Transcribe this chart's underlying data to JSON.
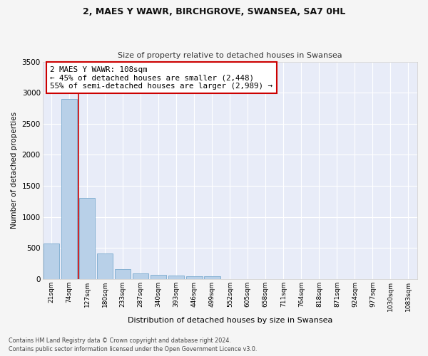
{
  "title": "2, MAES Y WAWR, BIRCHGROVE, SWANSEA, SA7 0HL",
  "subtitle": "Size of property relative to detached houses in Swansea",
  "xlabel": "Distribution of detached houses by size in Swansea",
  "ylabel": "Number of detached properties",
  "categories": [
    "21sqm",
    "74sqm",
    "127sqm",
    "180sqm",
    "233sqm",
    "287sqm",
    "340sqm",
    "393sqm",
    "446sqm",
    "499sqm",
    "552sqm",
    "605sqm",
    "658sqm",
    "711sqm",
    "764sqm",
    "818sqm",
    "871sqm",
    "924sqm",
    "977sqm",
    "1030sqm",
    "1083sqm"
  ],
  "values": [
    570,
    2900,
    1310,
    410,
    155,
    85,
    65,
    55,
    47,
    38,
    0,
    0,
    0,
    0,
    0,
    0,
    0,
    0,
    0,
    0,
    0
  ],
  "bar_color": "#b8d0e8",
  "bar_edge_color": "#7aaace",
  "vline_pos": 1.5,
  "annotation_text": "2 MAES Y WAWR: 108sqm\n← 45% of detached houses are smaller (2,448)\n55% of semi-detached houses are larger (2,989) →",
  "annotation_box_color": "#ffffff",
  "annotation_box_edge": "#cc0000",
  "vline_color": "#cc0000",
  "ylim": [
    0,
    3500
  ],
  "yticks": [
    0,
    500,
    1000,
    1500,
    2000,
    2500,
    3000,
    3500
  ],
  "background_color": "#e8ecf8",
  "grid_color": "#ffffff",
  "title_fontsize": 9,
  "subtitle_fontsize": 8,
  "footer_line1": "Contains HM Land Registry data © Crown copyright and database right 2024.",
  "footer_line2": "Contains public sector information licensed under the Open Government Licence v3.0."
}
